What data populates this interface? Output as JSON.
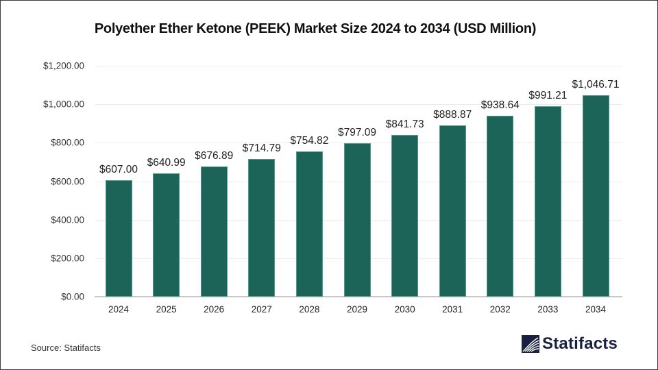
{
  "chart_data": {
    "type": "bar",
    "title": "Polyether Ether Ketone (PEEK) Market Size 2024 to 2034 (USD Million)",
    "xlabel": "",
    "ylabel": "",
    "categories": [
      "2024",
      "2025",
      "2026",
      "2027",
      "2028",
      "2029",
      "2030",
      "2031",
      "2032",
      "2033",
      "2034"
    ],
    "values": [
      607.0,
      640.99,
      676.89,
      714.79,
      754.82,
      797.09,
      841.73,
      888.87,
      938.64,
      991.21,
      1046.71
    ],
    "value_labels": [
      "$607.00",
      "$640.99",
      "$676.89",
      "$714.79",
      "$754.82",
      "$797.09",
      "$841.73",
      "$888.87",
      "$938.64",
      "$991.21",
      "$1,046.71"
    ],
    "ylim": [
      0,
      1200
    ],
    "yticks": [
      0,
      200,
      400,
      600,
      800,
      1000,
      1200
    ],
    "ytick_labels": [
      "$0.00",
      "$200.00",
      "$400.00",
      "$600.00",
      "$800.00",
      "$1,000.00",
      "$1,200.00"
    ],
    "grid": true,
    "legend": null,
    "bar_color": "#1b6457"
  },
  "footer": {
    "source": "Source: Statifacts",
    "brand": "Statifacts",
    "brand_color": "#1a2040"
  }
}
